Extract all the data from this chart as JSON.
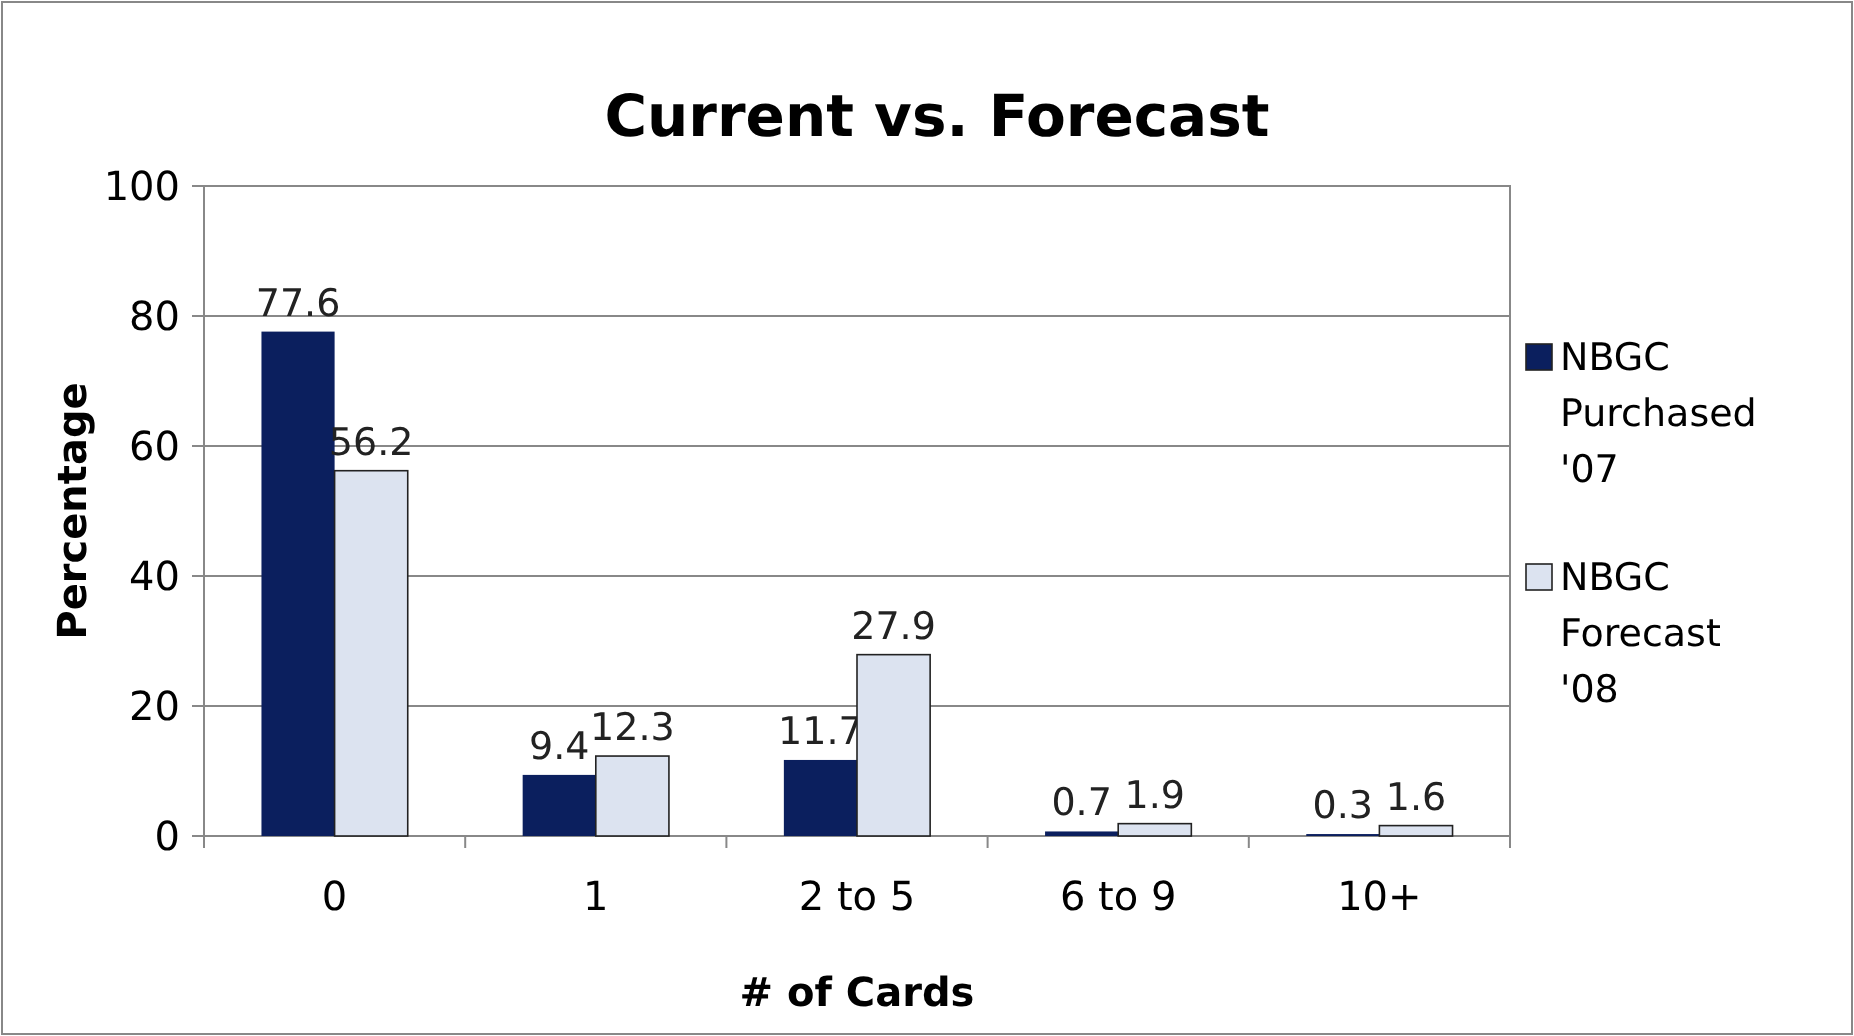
{
  "chart_data": {
    "type": "bar",
    "title": "Current vs. Forecast",
    "xlabel": "# of Cards",
    "ylabel": "Percentage",
    "categories": [
      "0",
      "1",
      "2 to 5",
      "6 to 9",
      "10+"
    ],
    "series": [
      {
        "name": "NBGC Purchased '07",
        "color": "#0b1f5e",
        "values": [
          77.6,
          9.4,
          11.7,
          0.7,
          0.3
        ]
      },
      {
        "name": "NBGC Forecast '08",
        "color": "#dce3f0",
        "values": [
          56.2,
          12.3,
          27.9,
          1.9,
          1.6
        ]
      }
    ],
    "ylim": [
      0,
      100
    ],
    "yticks": [
      0,
      20,
      40,
      60,
      80,
      100
    ],
    "grid": "y",
    "legend": "right",
    "data_labels": true
  }
}
